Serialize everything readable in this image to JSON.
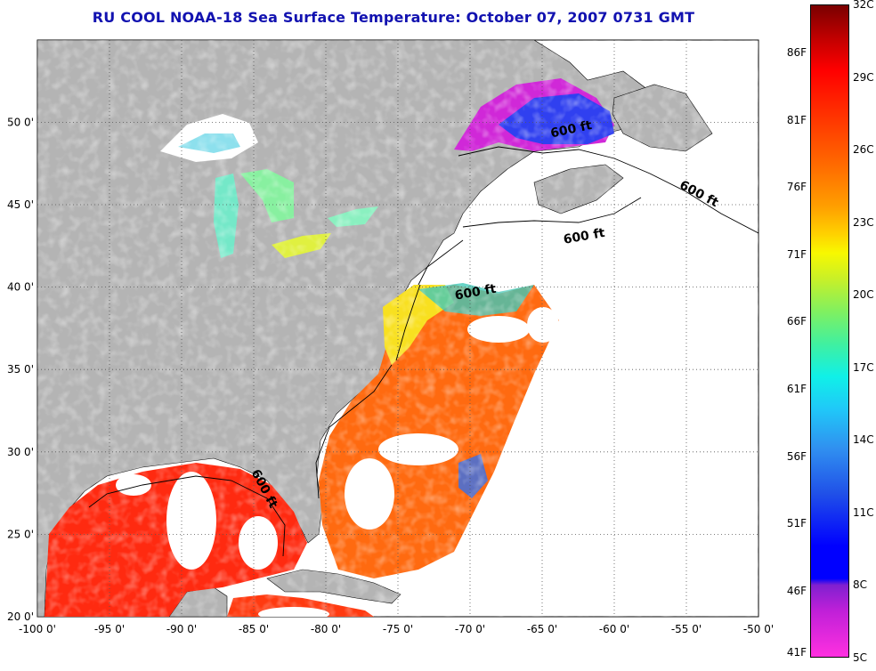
{
  "title": "RU COOL  NOAA-18  Sea Surface Temperature:  October 07, 2007 0731 GMT",
  "map": {
    "x_ticks": [
      "-100 0'",
      "-95 0'",
      "-90 0'",
      "-85 0'",
      "-80 0'",
      "-75 0'",
      "-70 0'",
      "-65 0'",
      "-60 0'",
      "-55 0'",
      "-50 0'"
    ],
    "y_ticks": [
      "50 0'",
      "45 0'",
      "40 0'",
      "35 0'",
      "30 0'",
      "25 0'",
      "20 0'"
    ],
    "contour_labels": [
      "600 ft",
      "600 ft",
      "600 ft",
      "600 ft",
      "600 ft"
    ],
    "colors": {
      "land": "#b4b4b4",
      "cloud": "#ffffff",
      "grid": "#555555"
    }
  },
  "colorbar": {
    "fahrenheit": [
      "86F",
      "81F",
      "76F",
      "71F",
      "66F",
      "61F",
      "56F",
      "51F",
      "46F",
      "41F"
    ],
    "celsius": [
      "32C",
      "29C",
      "26C",
      "23C",
      "20C",
      "17C",
      "14C",
      "11C",
      "8C",
      "5C"
    ]
  }
}
